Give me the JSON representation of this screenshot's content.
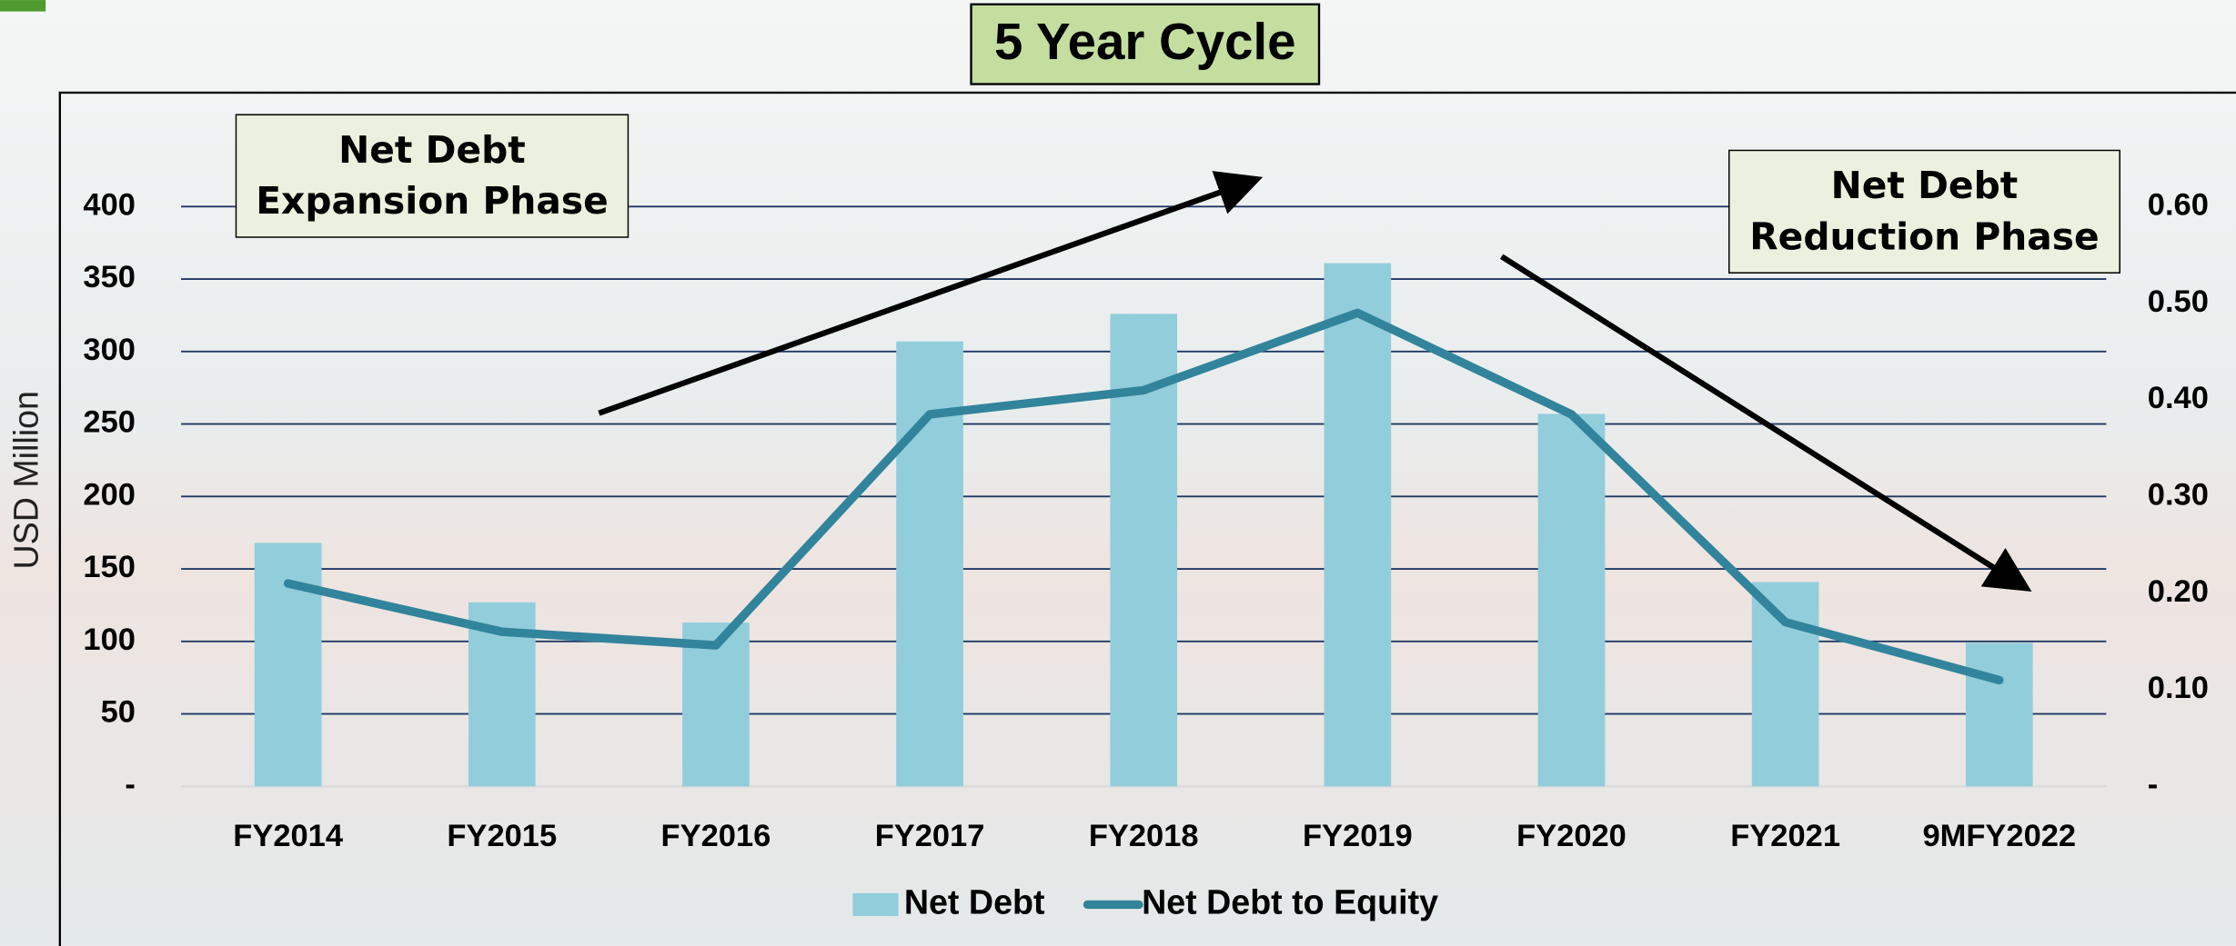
{
  "chart_data": {
    "type": "combo",
    "title": "5 Year Cycle",
    "y_label": "USD Million",
    "categories": [
      "FY2014",
      "FY2015",
      "FY2016",
      "FY2017",
      "FY2018",
      "FY2019",
      "FY2020",
      "FY2021",
      "9MFY2022"
    ],
    "series": [
      {
        "name": "Net Debt",
        "type": "bar",
        "color": "#92cddc",
        "values": [
          168,
          127,
          113,
          307,
          326,
          361,
          257,
          141,
          99
        ]
      },
      {
        "name": "Net Debt to Equity",
        "type": "line",
        "axis": "y2",
        "color": "#31849b",
        "values": [
          0.21,
          0.16,
          0.146,
          0.385,
          0.41,
          0.49,
          0.385,
          0.17,
          0.11
        ]
      }
    ],
    "ylim": [
      0,
      400
    ],
    "yticks": [
      {
        "value": 0,
        "label": "-"
      },
      50,
      100,
      150,
      200,
      250,
      300,
      350,
      400
    ],
    "y2lim": [
      0,
      0.6
    ],
    "y2ticks": [
      {
        "value": 0,
        "label": "-"
      },
      {
        "value": 0.1,
        "label": "0.10"
      },
      {
        "value": 0.2,
        "label": "0.20"
      },
      {
        "value": 0.3,
        "label": "0.30"
      },
      {
        "value": 0.4,
        "label": "0.40"
      },
      {
        "value": 0.5,
        "label": "0.50"
      },
      {
        "value": 0.6,
        "label": "0.60"
      }
    ],
    "grid": true,
    "legend": "bottom",
    "annotations": [
      "Net Debt Expansion Phase",
      "Net Debt Reduction Phase"
    ]
  }
}
